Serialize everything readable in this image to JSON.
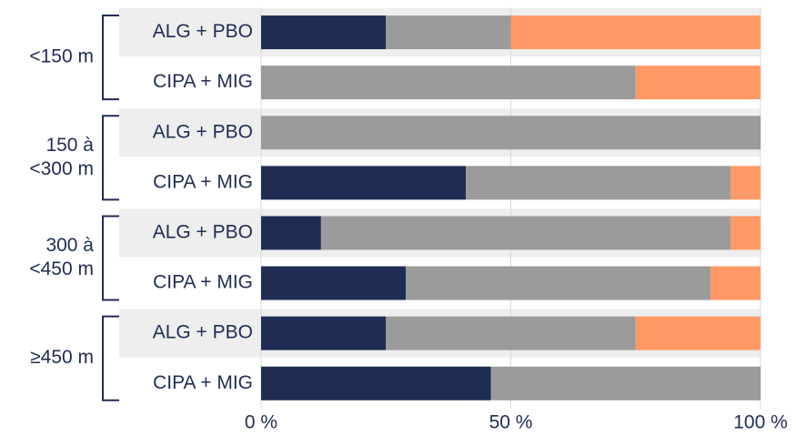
{
  "chart_data": {
    "type": "stacked-barh",
    "categories": [
      "ALG + PBO",
      "CIPA + MIG",
      "ALG + PBO",
      "CIPA + MIG",
      "ALG + PBO",
      "CIPA + MIG",
      "ALG + PBO",
      "CIPA + MIG"
    ],
    "groups": [
      {
        "label": [
          "<150 m"
        ]
      },
      {
        "label": [
          "150 à",
          "<300 m"
        ]
      },
      {
        "label": [
          "300 à",
          "<450 m"
        ]
      },
      {
        "label": [
          "≥450 m"
        ]
      }
    ],
    "series": [
      {
        "color": "#1f2d54",
        "values": [
          25,
          0,
          0,
          41,
          12,
          29,
          25,
          46
        ]
      },
      {
        "color": "#9b9b9b",
        "values": [
          25,
          75,
          100,
          53,
          82,
          61,
          50,
          54
        ]
      },
      {
        "color": "#ff9966",
        "values": [
          50,
          25,
          0,
          6,
          6,
          10,
          25,
          0
        ]
      }
    ],
    "xlim": [
      0,
      100
    ],
    "xticks": [
      {
        "value": 0,
        "label": "0 %"
      },
      {
        "value": 50,
        "label": "50 %"
      },
      {
        "value": 100,
        "label": "100 %"
      }
    ],
    "grid": true
  }
}
